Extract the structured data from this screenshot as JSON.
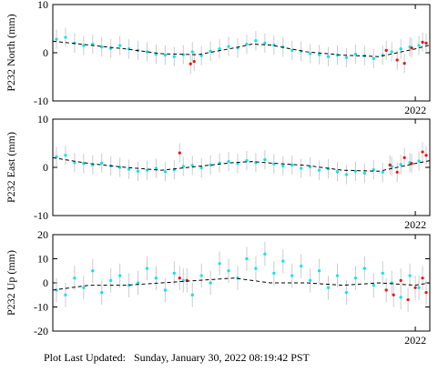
{
  "chart_data": [
    {
      "type": "scatter",
      "y_label": "P232 North (mm)",
      "xlim": [
        2021.0,
        2022.04
      ],
      "xticks": [
        2022
      ],
      "ylim": [
        -10,
        10
      ],
      "yticks": [
        -10,
        0,
        10
      ],
      "series": [
        {
          "color": "#00e5ee",
          "error": 2,
          "x": [
            2021.01,
            2021.035,
            2021.06,
            2021.085,
            2021.11,
            2021.135,
            2021.16,
            2021.185,
            2021.21,
            2021.235,
            2021.26,
            2021.285,
            2021.31,
            2021.335,
            2021.36,
            2021.385,
            2021.41,
            2021.435,
            2021.46,
            2021.485,
            2021.51,
            2021.535,
            2021.56,
            2021.585,
            2021.61,
            2021.635,
            2021.66,
            2021.685,
            2021.71,
            2021.735,
            2021.76,
            2021.785,
            2021.81,
            2021.835,
            2021.86,
            2021.885,
            2021.91,
            2021.935,
            2021.96,
            2021.985,
            2022.01
          ],
          "values": [
            2.8,
            3.2,
            2.0,
            1.5,
            1.8,
            1.2,
            0.9,
            1.5,
            0.8,
            0.5,
            0.2,
            -0.3,
            -0.5,
            -0.8,
            -0.4,
            0.2,
            -0.6,
            0.3,
            0.8,
            1.3,
            1.0,
            1.8,
            2.5,
            2.0,
            1.6,
            1.2,
            0.5,
            0.3,
            -0.2,
            -0.4,
            -0.8,
            -0.5,
            -1.0,
            -0.3,
            -0.6,
            -1.2,
            -0.5,
            0.2,
            0.8,
            1.2,
            1.5
          ]
        },
        {
          "color": "#ee1111",
          "error": 2,
          "x": [
            2021.38,
            2021.39,
            2021.92,
            2021.95,
            2021.97,
            2021.99,
            2022.02,
            2022.03
          ],
          "values": [
            -2.3,
            -1.8,
            0.5,
            -1.5,
            -2.2,
            1.0,
            2.2,
            2.0
          ]
        },
        {
          "color": "#000000",
          "line": true,
          "x": [
            2021.0,
            2021.1,
            2021.2,
            2021.3,
            2021.4,
            2021.5,
            2021.55,
            2021.6,
            2021.7,
            2021.8,
            2021.9,
            2022.0,
            2022.04
          ],
          "values": [
            2.4,
            1.6,
            0.8,
            -0.2,
            -0.4,
            1.0,
            1.8,
            1.6,
            0.2,
            -0.5,
            -0.8,
            0.8,
            1.6
          ]
        }
      ]
    },
    {
      "type": "scatter",
      "y_label": "P232 East (mm)",
      "xlim": [
        2021.0,
        2022.04
      ],
      "xticks": [
        2022
      ],
      "ylim": [
        -10,
        10
      ],
      "yticks": [
        -10,
        0,
        10
      ],
      "series": [
        {
          "color": "#00e5ee",
          "error": 2,
          "x": [
            2021.01,
            2021.035,
            2021.06,
            2021.085,
            2021.11,
            2021.135,
            2021.16,
            2021.185,
            2021.21,
            2021.235,
            2021.26,
            2021.285,
            2021.31,
            2021.335,
            2021.36,
            2021.385,
            2021.41,
            2021.435,
            2021.46,
            2021.485,
            2021.51,
            2021.535,
            2021.56,
            2021.585,
            2021.61,
            2021.635,
            2021.66,
            2021.685,
            2021.71,
            2021.735,
            2021.76,
            2021.785,
            2021.81,
            2021.835,
            2021.86,
            2021.885,
            2021.91,
            2021.935,
            2021.96,
            2021.985,
            2022.01
          ],
          "values": [
            2.2,
            2.5,
            1.0,
            0.8,
            0.5,
            0.9,
            0.3,
            0.0,
            -0.4,
            -0.8,
            -0.6,
            -0.2,
            -0.9,
            -0.5,
            0.2,
            0.4,
            -0.1,
            0.5,
            0.9,
            1.2,
            0.8,
            1.4,
            1.0,
            1.6,
            0.7,
            0.3,
            0.5,
            -0.2,
            0.1,
            -0.6,
            -0.3,
            -0.9,
            -1.5,
            -0.8,
            -1.2,
            -0.5,
            -1.0,
            0.2,
            0.6,
            1.0,
            1.3
          ]
        },
        {
          "color": "#ee1111",
          "error": 2,
          "x": [
            2021.35,
            2021.93,
            2021.95,
            2021.97,
            2021.99,
            2022.02,
            2022.03
          ],
          "values": [
            3.0,
            0.5,
            -1.0,
            2.0,
            0.8,
            3.2,
            2.5
          ]
        },
        {
          "color": "#000000",
          "line": true,
          "x": [
            2021.0,
            2021.1,
            2021.2,
            2021.3,
            2021.4,
            2021.5,
            2021.55,
            2021.6,
            2021.7,
            2021.8,
            2021.9,
            2022.0,
            2022.04
          ],
          "values": [
            2.0,
            0.8,
            0.0,
            -0.6,
            0.2,
            1.0,
            1.2,
            0.9,
            0.4,
            -0.6,
            -0.8,
            0.8,
            1.4
          ]
        }
      ]
    },
    {
      "type": "scatter",
      "y_label": "P232 Up (mm)",
      "xlim": [
        2021.0,
        2022.04
      ],
      "xticks": [
        2022
      ],
      "ylim": [
        -20,
        20
      ],
      "yticks": [
        -20,
        -10,
        0,
        10,
        20
      ],
      "series": [
        {
          "color": "#00e5ee",
          "error": 5,
          "x": [
            2021.01,
            2021.035,
            2021.06,
            2021.085,
            2021.11,
            2021.135,
            2021.16,
            2021.185,
            2021.21,
            2021.235,
            2021.26,
            2021.285,
            2021.31,
            2021.335,
            2021.36,
            2021.385,
            2021.41,
            2021.435,
            2021.46,
            2021.485,
            2021.51,
            2021.535,
            2021.56,
            2021.585,
            2021.61,
            2021.635,
            2021.66,
            2021.685,
            2021.71,
            2021.735,
            2021.76,
            2021.785,
            2021.81,
            2021.835,
            2021.86,
            2021.885,
            2021.91,
            2021.935,
            2021.96,
            2021.985,
            2022.01
          ],
          "values": [
            -3,
            -5,
            2,
            -2,
            5,
            -4,
            1,
            3,
            -1,
            0,
            6,
            2,
            -3,
            4,
            1,
            -5,
            3,
            0,
            8,
            5,
            2,
            10,
            6,
            12,
            4,
            9,
            3,
            7,
            1,
            5,
            -2,
            3,
            -4,
            2,
            6,
            -1,
            4,
            0,
            -6,
            3,
            -2
          ]
        },
        {
          "color": "#ee1111",
          "error": 5,
          "x": [
            2021.35,
            2021.37,
            2021.92,
            2021.94,
            2021.96,
            2021.98,
            2022.0,
            2022.02,
            2022.03
          ],
          "values": [
            2,
            1,
            -3,
            -5,
            1,
            -7,
            -2,
            2,
            -4
          ]
        },
        {
          "color": "#000000",
          "line": true,
          "x": [
            2021.0,
            2021.1,
            2021.2,
            2021.3,
            2021.4,
            2021.5,
            2021.55,
            2021.6,
            2021.7,
            2021.8,
            2021.9,
            2022.0,
            2022.04
          ],
          "values": [
            -3,
            -1,
            -1,
            0,
            1,
            2,
            1,
            0,
            0,
            -1,
            0,
            -1,
            0
          ]
        }
      ]
    }
  ],
  "footer": "Plot Last Updated:   Sunday, January 30, 2022 08:19:42 PST"
}
